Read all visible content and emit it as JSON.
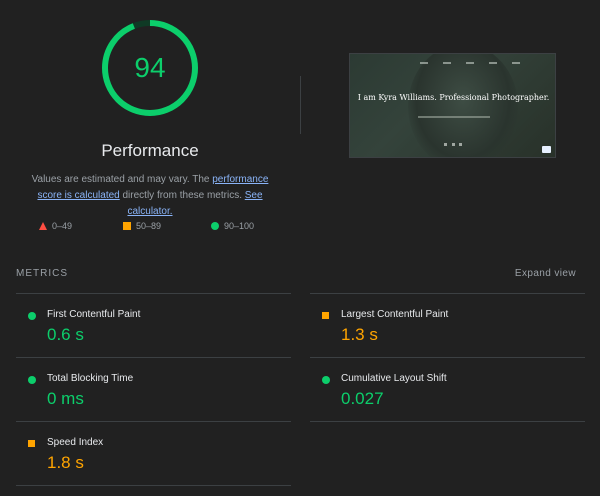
{
  "gauge": {
    "score": "94",
    "score_fraction": 0.94,
    "title": "Performance",
    "color": "#0cce6b"
  },
  "description": {
    "text_1": "Values are estimated and may vary. The ",
    "link_1": "performance score is calculated",
    "text_2": " directly from these metrics. ",
    "link_2": "See calculator."
  },
  "legend": [
    {
      "icon": "fail-triangle-icon",
      "label": "0–49",
      "color": "#ff4e42"
    },
    {
      "icon": "average-square-icon",
      "label": "50–89",
      "color": "#ffa400"
    },
    {
      "icon": "pass-circle-icon",
      "label": "90–100",
      "color": "#0cce6b"
    }
  ],
  "screenshot": {
    "headline": "I am Kyra Williams. Professional Photographer."
  },
  "metrics_section": {
    "title": "METRICS",
    "expand_label": "Expand view"
  },
  "metrics": [
    {
      "label": "First Contentful Paint",
      "value": "0.6 s",
      "status": "pass"
    },
    {
      "label": "Largest Contentful Paint",
      "value": "1.3 s",
      "status": "average"
    },
    {
      "label": "Total Blocking Time",
      "value": "0 ms",
      "status": "pass"
    },
    {
      "label": "Cumulative Layout Shift",
      "value": "0.027",
      "status": "pass"
    },
    {
      "label": "Speed Index",
      "value": "1.8 s",
      "status": "average"
    }
  ]
}
